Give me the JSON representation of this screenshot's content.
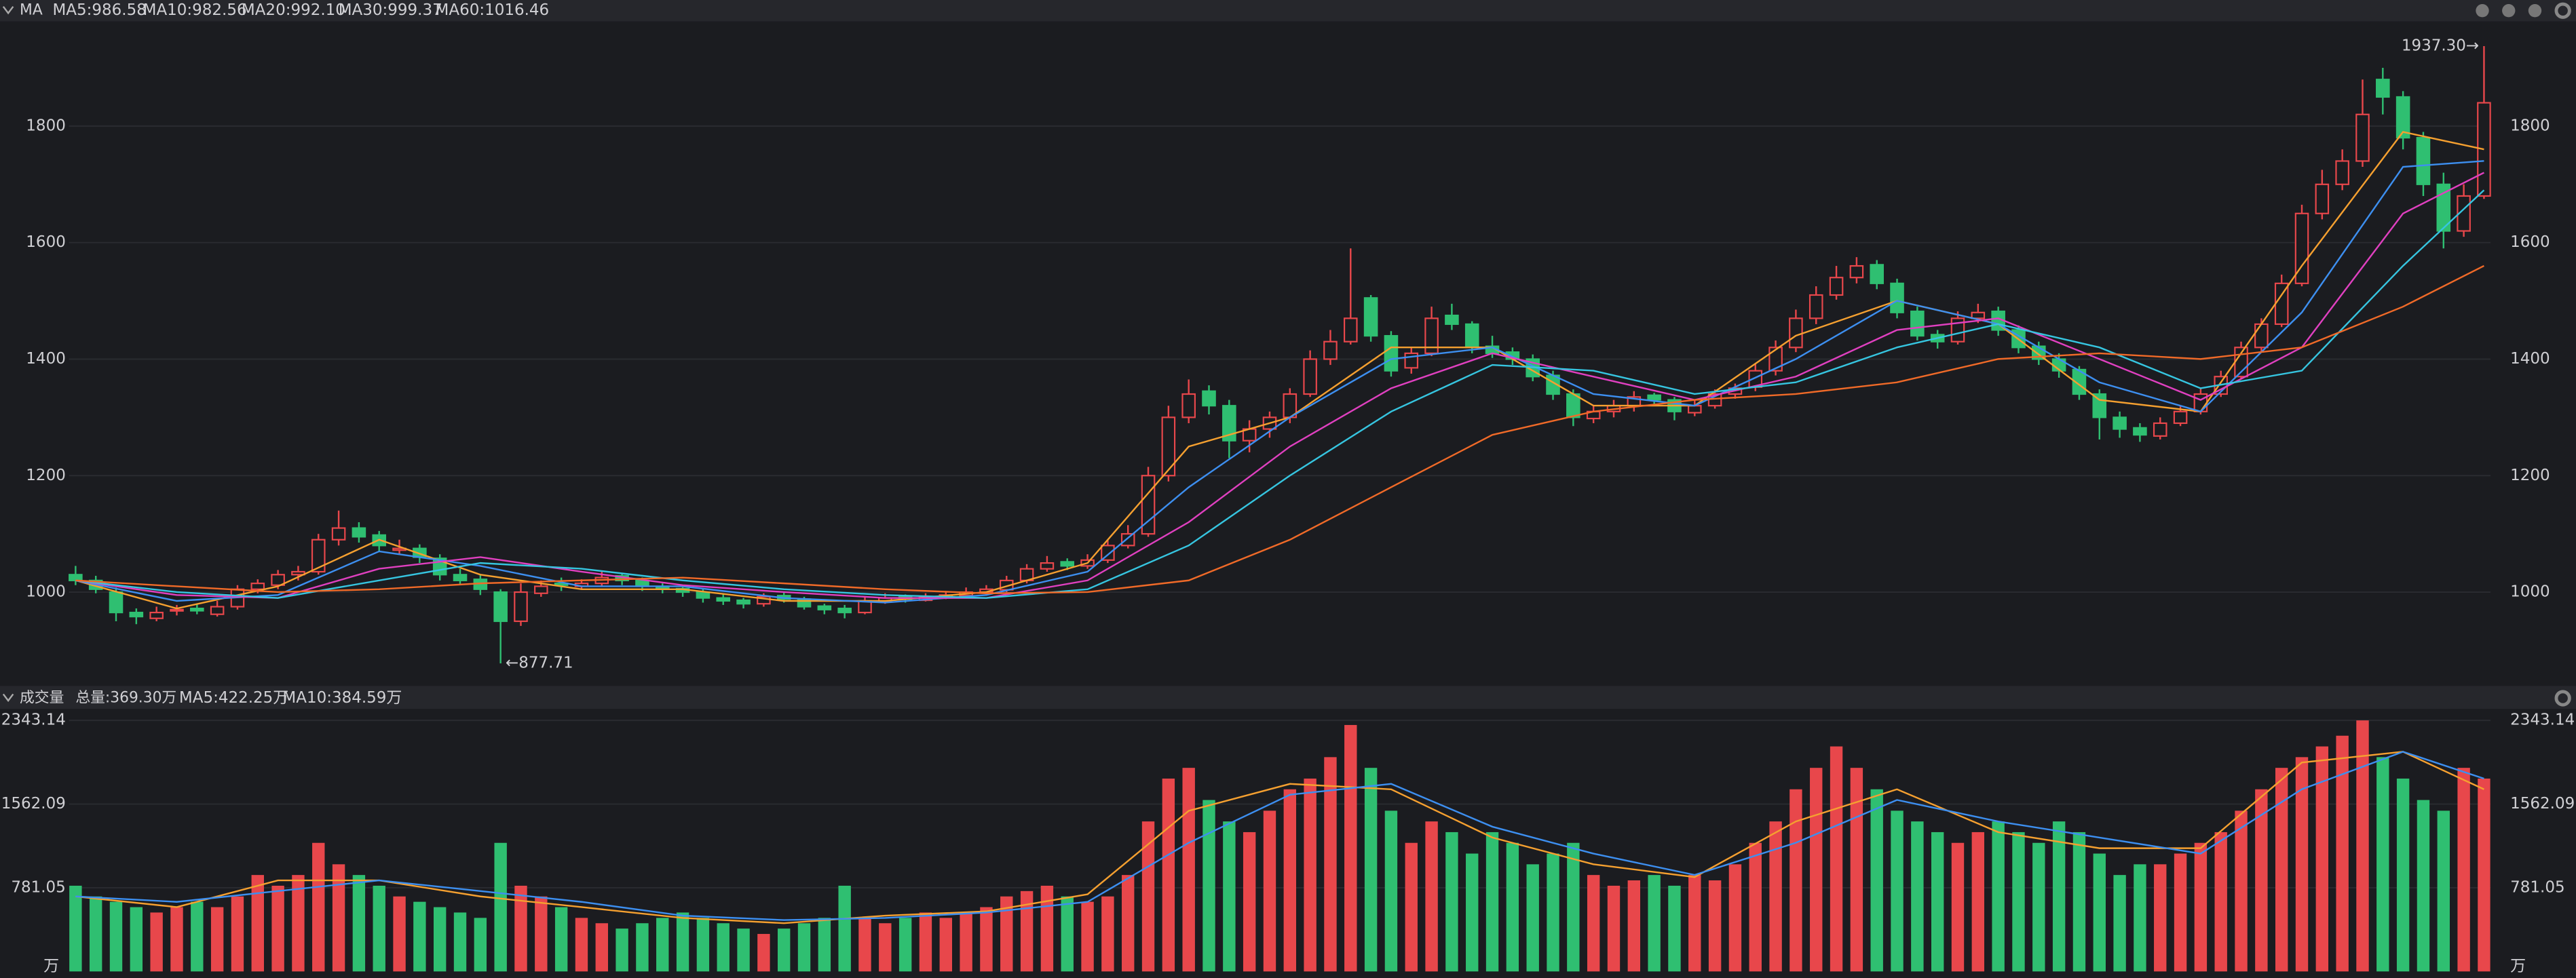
{
  "chart_data": [
    {
      "type": "candlestick",
      "title": "MA",
      "up_color": "#e8474b",
      "down_color": "#2fbf71",
      "ylim": [
        839,
        1977
      ],
      "yticks": [
        1000,
        1200,
        1400,
        1600,
        1800
      ],
      "grid": true,
      "annotations": [
        {
          "value": 1937.3,
          "label": "1937.30→",
          "index": 119
        },
        {
          "value": 877.71,
          "label": "←877.71",
          "index": 21
        }
      ],
      "ohlc": [
        [
          1030,
          1045,
          1012,
          1020
        ],
        [
          1020,
          1028,
          998,
          1005
        ],
        [
          1000,
          1008,
          950,
          965
        ],
        [
          965,
          972,
          945,
          958
        ],
        [
          955,
          975,
          950,
          965
        ],
        [
          968,
          978,
          960,
          970
        ],
        [
          972,
          980,
          962,
          968
        ],
        [
          962,
          985,
          958,
          975
        ],
        [
          975,
          1012,
          970,
          1005
        ],
        [
          1005,
          1022,
          998,
          1015
        ],
        [
          1012,
          1038,
          1005,
          1030
        ],
        [
          1030,
          1045,
          1020,
          1035
        ],
        [
          1035,
          1100,
          1030,
          1090
        ],
        [
          1090,
          1140,
          1080,
          1110
        ],
        [
          1110,
          1120,
          1085,
          1095
        ],
        [
          1098,
          1105,
          1070,
          1080
        ],
        [
          1072,
          1090,
          1065,
          1075
        ],
        [
          1075,
          1082,
          1050,
          1060
        ],
        [
          1058,
          1065,
          1020,
          1030
        ],
        [
          1030,
          1040,
          1012,
          1020
        ],
        [
          1022,
          1030,
          995,
          1005
        ],
        [
          1000,
          1005,
          877.71,
          950
        ],
        [
          950,
          1015,
          942,
          1000
        ],
        [
          998,
          1020,
          992,
          1010
        ],
        [
          1015,
          1025,
          1002,
          1012
        ],
        [
          1010,
          1022,
          1005,
          1015
        ],
        [
          1015,
          1035,
          1010,
          1025
        ],
        [
          1028,
          1032,
          1012,
          1020
        ],
        [
          1020,
          1025,
          1002,
          1010
        ],
        [
          1008,
          1015,
          998,
          1005
        ],
        [
          1006,
          1010,
          992,
          1000
        ],
        [
          1000,
          1005,
          982,
          990
        ],
        [
          990,
          998,
          978,
          985
        ],
        [
          986,
          990,
          972,
          980
        ],
        [
          980,
          998,
          975,
          992
        ],
        [
          994,
          1000,
          982,
          988
        ],
        [
          988,
          992,
          970,
          975
        ],
        [
          976,
          980,
          962,
          970
        ],
        [
          972,
          978,
          955,
          965
        ],
        [
          965,
          992,
          962,
          985
        ],
        [
          984,
          998,
          980,
          990
        ],
        [
          992,
          996,
          982,
          988
        ],
        [
          986,
          998,
          984,
          992
        ],
        [
          990,
          1002,
          988,
          995
        ],
        [
          994,
          1008,
          990,
          1000
        ],
        [
          1000,
          1012,
          996,
          1005
        ],
        [
          1004,
          1028,
          1000,
          1020
        ],
        [
          1020,
          1048,
          1015,
          1040
        ],
        [
          1040,
          1062,
          1035,
          1050
        ],
        [
          1052,
          1058,
          1038,
          1045
        ],
        [
          1045,
          1065,
          1040,
          1055
        ],
        [
          1055,
          1090,
          1050,
          1080
        ],
        [
          1080,
          1115,
          1075,
          1100
        ],
        [
          1100,
          1215,
          1095,
          1200
        ],
        [
          1200,
          1320,
          1190,
          1300
        ],
        [
          1300,
          1365,
          1290,
          1340
        ],
        [
          1345,
          1355,
          1305,
          1320
        ],
        [
          1320,
          1330,
          1230,
          1260
        ],
        [
          1260,
          1295,
          1240,
          1280
        ],
        [
          1280,
          1310,
          1265,
          1300
        ],
        [
          1300,
          1350,
          1290,
          1340
        ],
        [
          1340,
          1415,
          1335,
          1400
        ],
        [
          1400,
          1450,
          1390,
          1430
        ],
        [
          1430,
          1590,
          1425,
          1470
        ],
        [
          1505,
          1510,
          1430,
          1440
        ],
        [
          1440,
          1448,
          1370,
          1380
        ],
        [
          1385,
          1420,
          1375,
          1410
        ],
        [
          1410,
          1490,
          1405,
          1470
        ],
        [
          1475,
          1495,
          1450,
          1460
        ],
        [
          1460,
          1465,
          1410,
          1420
        ],
        [
          1422,
          1440,
          1402,
          1410
        ],
        [
          1412,
          1420,
          1390,
          1400
        ],
        [
          1400,
          1408,
          1362,
          1370
        ],
        [
          1372,
          1380,
          1330,
          1340
        ],
        [
          1340,
          1348,
          1285,
          1300
        ],
        [
          1298,
          1320,
          1290,
          1310
        ],
        [
          1310,
          1330,
          1300,
          1320
        ],
        [
          1320,
          1345,
          1310,
          1335
        ],
        [
          1338,
          1342,
          1322,
          1330
        ],
        [
          1330,
          1335,
          1295,
          1310
        ],
        [
          1308,
          1330,
          1302,
          1320
        ],
        [
          1320,
          1348,
          1315,
          1340
        ],
        [
          1340,
          1358,
          1332,
          1350
        ],
        [
          1352,
          1392,
          1345,
          1380
        ],
        [
          1380,
          1432,
          1372,
          1420
        ],
        [
          1420,
          1485,
          1412,
          1470
        ],
        [
          1470,
          1525,
          1460,
          1510
        ],
        [
          1510,
          1560,
          1502,
          1540
        ],
        [
          1540,
          1575,
          1530,
          1560
        ],
        [
          1562,
          1570,
          1520,
          1530
        ],
        [
          1530,
          1538,
          1470,
          1480
        ],
        [
          1482,
          1490,
          1432,
          1440
        ],
        [
          1442,
          1450,
          1418,
          1430
        ],
        [
          1430,
          1482,
          1425,
          1470
        ],
        [
          1470,
          1495,
          1462,
          1480
        ],
        [
          1482,
          1490,
          1440,
          1450
        ],
        [
          1450,
          1458,
          1410,
          1420
        ],
        [
          1422,
          1430,
          1390,
          1400
        ],
        [
          1400,
          1410,
          1368,
          1380
        ],
        [
          1382,
          1388,
          1330,
          1340
        ],
        [
          1340,
          1348,
          1262,
          1300
        ],
        [
          1300,
          1310,
          1265,
          1280
        ],
        [
          1282,
          1290,
          1258,
          1270
        ],
        [
          1268,
          1300,
          1262,
          1290
        ],
        [
          1290,
          1320,
          1285,
          1310
        ],
        [
          1310,
          1350,
          1305,
          1340
        ],
        [
          1340,
          1380,
          1335,
          1370
        ],
        [
          1370,
          1430,
          1365,
          1420
        ],
        [
          1420,
          1470,
          1412,
          1460
        ],
        [
          1460,
          1545,
          1455,
          1530
        ],
        [
          1530,
          1665,
          1525,
          1650
        ],
        [
          1650,
          1725,
          1640,
          1700
        ],
        [
          1700,
          1760,
          1690,
          1740
        ],
        [
          1740,
          1880,
          1730,
          1820
        ],
        [
          1880,
          1900,
          1820,
          1850
        ],
        [
          1850,
          1860,
          1760,
          1780
        ],
        [
          1780,
          1790,
          1680,
          1700
        ],
        [
          1700,
          1720,
          1590,
          1620
        ],
        [
          1620,
          1700,
          1610,
          1680
        ],
        [
          1680,
          1937.3,
          1675,
          1840
        ]
      ],
      "ma_x": [
        0,
        5,
        10,
        15,
        20,
        25,
        30,
        35,
        40,
        45,
        50,
        55,
        60,
        65,
        70,
        75,
        80,
        85,
        90,
        95,
        100,
        105,
        110,
        115,
        119
      ],
      "series": [
        {
          "name": "MA5",
          "legend": "MA5:986.58",
          "color": "#f5a030",
          "values": [
            1020,
            972,
            1010,
            1090,
            1030,
            1005,
            1005,
            985,
            985,
            1000,
            1050,
            1250,
            1300,
            1420,
            1420,
            1320,
            1320,
            1440,
            1500,
            1460,
            1330,
            1310,
            1560,
            1790,
            1760
          ]
        },
        {
          "name": "MA10",
          "legend": "MA10:982.56",
          "color": "#3d8ff0",
          "values": [
            1020,
            985,
            995,
            1070,
            1045,
            1010,
            1010,
            990,
            982,
            995,
            1035,
            1180,
            1300,
            1400,
            1420,
            1340,
            1320,
            1400,
            1500,
            1460,
            1360,
            1310,
            1480,
            1730,
            1740
          ]
        },
        {
          "name": "MA20",
          "legend": "MA20:992.10",
          "color": "#e040c0",
          "values": [
            1020,
            995,
            990,
            1040,
            1060,
            1035,
            1012,
            1000,
            990,
            990,
            1020,
            1120,
            1250,
            1350,
            1410,
            1370,
            1330,
            1370,
            1450,
            1470,
            1400,
            1330,
            1420,
            1650,
            1720
          ]
        },
        {
          "name": "MA30",
          "legend": "MA30:999.37",
          "color": "#36c5e0",
          "values": [
            1020,
            1000,
            990,
            1020,
            1050,
            1040,
            1020,
            1005,
            995,
            990,
            1005,
            1080,
            1200,
            1310,
            1390,
            1380,
            1340,
            1360,
            1420,
            1460,
            1420,
            1350,
            1380,
            1560,
            1690
          ]
        },
        {
          "name": "MA60",
          "legend": "MA60:1016.46",
          "color": "#f06a28",
          "values": [
            1020,
            1010,
            1000,
            1005,
            1015,
            1020,
            1025,
            1015,
            1005,
            998,
            1000,
            1020,
            1090,
            1180,
            1270,
            1310,
            1330,
            1340,
            1360,
            1400,
            1410,
            1400,
            1420,
            1490,
            1560
          ]
        }
      ]
    },
    {
      "type": "volume",
      "title": "成交量",
      "total_label": "总量:369.30万",
      "total_color": "#2fbf71",
      "unit": "万",
      "ylim": [
        0,
        2435
      ],
      "yticks": [
        781.05,
        1562.09,
        2343.14
      ],
      "grid": true,
      "values": [
        800,
        700,
        650,
        600,
        550,
        600,
        650,
        600,
        700,
        900,
        800,
        900,
        1200,
        1000,
        900,
        800,
        700,
        650,
        600,
        550,
        500,
        1200,
        800,
        700,
        600,
        500,
        450,
        400,
        450,
        500,
        550,
        500,
        450,
        400,
        350,
        400,
        450,
        500,
        800,
        500,
        450,
        500,
        550,
        500,
        550,
        600,
        700,
        750,
        800,
        700,
        650,
        700,
        900,
        1400,
        1800,
        1900,
        1600,
        1400,
        1300,
        1500,
        1700,
        1800,
        2000,
        2300,
        1900,
        1500,
        1200,
        1400,
        1300,
        1100,
        1300,
        1200,
        1000,
        1100,
        1200,
        900,
        800,
        850,
        900,
        800,
        900,
        850,
        1000,
        1200,
        1400,
        1700,
        1900,
        2100,
        1900,
        1700,
        1500,
        1400,
        1300,
        1200,
        1300,
        1400,
        1300,
        1200,
        1400,
        1300,
        1100,
        900,
        1000,
        1000,
        1100,
        1200,
        1300,
        1500,
        1700,
        1900,
        2000,
        2100,
        2200,
        2343,
        2000,
        1800,
        1600,
        1500,
        1900,
        1800
      ],
      "ma_x": [
        0,
        5,
        10,
        15,
        20,
        25,
        30,
        35,
        40,
        45,
        50,
        55,
        60,
        65,
        70,
        75,
        80,
        85,
        90,
        95,
        100,
        105,
        110,
        115,
        119
      ],
      "series": [
        {
          "name": "MA5",
          "legend": "MA5:422.25万",
          "color": "#f5a030",
          "values": [
            700,
            600,
            850,
            850,
            700,
            600,
            500,
            450,
            520,
            560,
            720,
            1500,
            1750,
            1700,
            1250,
            1000,
            880,
            1400,
            1700,
            1300,
            1150,
            1150,
            1950,
            2050,
            1700
          ]
        },
        {
          "name": "MA10",
          "legend": "MA10:384.59万",
          "color": "#3d8ff0",
          "values": [
            700,
            650,
            750,
            850,
            750,
            650,
            520,
            480,
            500,
            550,
            650,
            1200,
            1650,
            1750,
            1350,
            1100,
            900,
            1200,
            1600,
            1400,
            1250,
            1100,
            1700,
            2050,
            1800
          ]
        }
      ]
    }
  ]
}
